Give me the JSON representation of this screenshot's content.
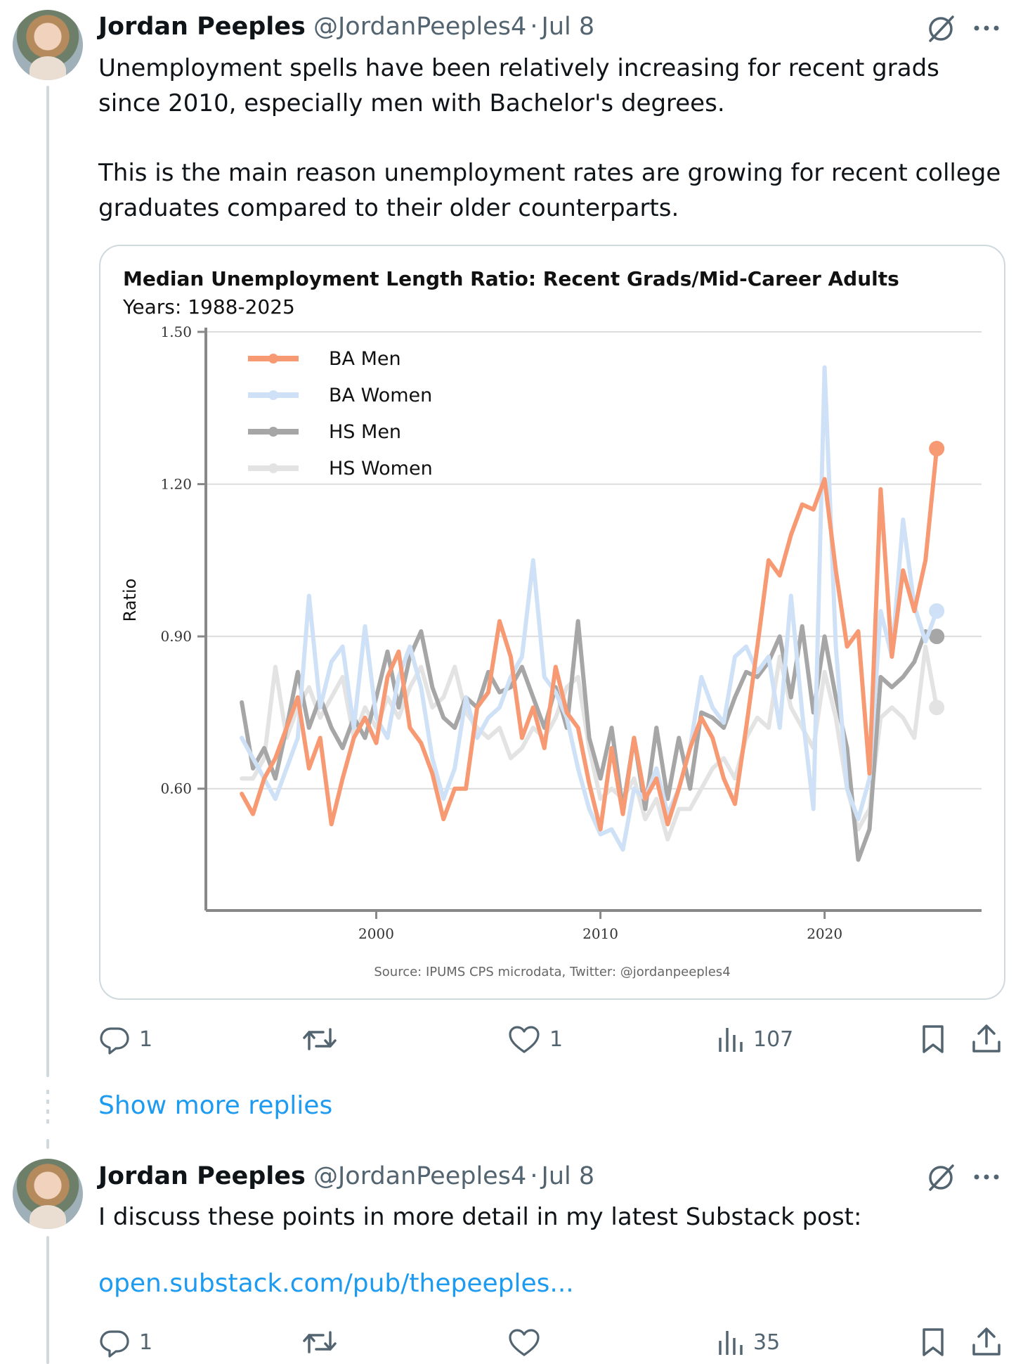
{
  "tweet1": {
    "name": "Jordan Peeples",
    "handle": "@JordanPeeples4",
    "dot": "·",
    "date": "Jul 8",
    "text_p1": "Unemployment spells have been relatively increasing for recent grads since 2010, especially men with Bachelor's degrees.",
    "text_p2": "This is the main reason unemployment rates are growing for recent college graduates compared to their older counterparts.",
    "actions": {
      "replies": "1",
      "reposts": "",
      "likes": "1",
      "views": "107"
    }
  },
  "show_more": "Show more replies",
  "tweet2": {
    "name": "Jordan Peeples",
    "handle": "@JordanPeeples4",
    "dot": "·",
    "date": "Jul 8",
    "text": "I discuss these points in more detail in my latest Substack post:",
    "link": "open.substack.com/pub/thepeeples...",
    "actions": {
      "replies": "1",
      "reposts": "",
      "likes": "",
      "views": "35"
    }
  },
  "icons": [
    "grok-slash-icon",
    "more-icon",
    "reply-icon",
    "repost-icon",
    "like-icon",
    "views-icon",
    "bookmark-icon",
    "share-icon"
  ],
  "colors": {
    "link": "#1d9bf0",
    "muted": "#536471",
    "thread_line": "#cfd9de"
  },
  "chart_data": {
    "type": "line",
    "title": "Median Unemployment Length Ratio: Recent Grads/Mid-Career Adults",
    "subtitle": "Years: 1988-2025",
    "ylabel": "Ratio",
    "xlabel": "",
    "ylim": [
      0.36,
      1.5
    ],
    "xlim": [
      1992.4,
      2027
    ],
    "yticks": [
      "0.60",
      "0.90",
      "1.20",
      "1.50"
    ],
    "yticks_values": [
      0.6,
      0.9,
      1.2,
      1.5
    ],
    "xticks": [
      "2000",
      "2010",
      "2020"
    ],
    "xticks_values": [
      2000,
      2010,
      2020
    ],
    "grid": true,
    "legend_position": "top-left",
    "source": "Source: IPUMS CPS microdata, Twitter: @jordanpeeples4",
    "series": [
      {
        "name": "BA Men",
        "color": "#f79a73",
        "x": [
          1994.0,
          1994.5,
          1995.0,
          1995.5,
          1996.0,
          1996.5,
          1997.0,
          1997.5,
          1998.0,
          1998.5,
          1999.0,
          1999.5,
          2000.0,
          2000.5,
          2001.0,
          2001.5,
          2002.0,
          2002.5,
          2003.0,
          2003.5,
          2004.0,
          2004.5,
          2005.0,
          2005.5,
          2006.0,
          2006.5,
          2007.0,
          2007.5,
          2008.0,
          2008.5,
          2009.0,
          2009.5,
          2010.0,
          2010.5,
          2011.0,
          2011.5,
          2012.0,
          2012.5,
          2013.0,
          2013.5,
          2014.0,
          2014.5,
          2015.0,
          2015.5,
          2016.0,
          2016.5,
          2017.0,
          2017.5,
          2018.0,
          2018.5,
          2019.0,
          2019.5,
          2020.0,
          2020.5,
          2021.0,
          2021.5,
          2022.0,
          2022.5,
          2023.0,
          2023.5,
          2024.0,
          2024.5,
          2025.0
        ],
        "values": [
          0.59,
          0.55,
          0.62,
          0.66,
          0.72,
          0.78,
          0.64,
          0.7,
          0.53,
          0.62,
          0.7,
          0.74,
          0.69,
          0.82,
          0.87,
          0.72,
          0.69,
          0.63,
          0.54,
          0.6,
          0.6,
          0.76,
          0.79,
          0.93,
          0.86,
          0.7,
          0.76,
          0.68,
          0.84,
          0.75,
          0.72,
          0.61,
          0.52,
          0.68,
          0.55,
          0.7,
          0.58,
          0.62,
          0.53,
          0.6,
          0.68,
          0.74,
          0.7,
          0.62,
          0.57,
          0.72,
          0.88,
          1.05,
          1.02,
          1.1,
          1.16,
          1.15,
          1.21,
          1.03,
          0.88,
          0.91,
          0.63,
          1.19,
          0.86,
          1.03,
          0.95,
          1.05,
          1.27
        ]
      },
      {
        "name": "BA Women",
        "color": "#cfe1f7",
        "x": [
          1994.0,
          1994.5,
          1995.0,
          1995.5,
          1996.0,
          1996.5,
          1997.0,
          1997.5,
          1998.0,
          1998.5,
          1999.0,
          1999.5,
          2000.0,
          2000.5,
          2001.0,
          2001.5,
          2002.0,
          2002.5,
          2003.0,
          2003.5,
          2004.0,
          2004.5,
          2005.0,
          2005.5,
          2006.0,
          2006.5,
          2007.0,
          2007.5,
          2008.0,
          2008.5,
          2009.0,
          2009.5,
          2010.0,
          2010.5,
          2011.0,
          2011.5,
          2012.0,
          2012.5,
          2013.0,
          2013.5,
          2014.0,
          2014.5,
          2015.0,
          2015.5,
          2016.0,
          2016.5,
          2017.0,
          2017.5,
          2018.0,
          2018.5,
          2019.0,
          2019.5,
          2020.0,
          2020.5,
          2021.0,
          2021.5,
          2022.0,
          2022.5,
          2023.0,
          2023.5,
          2024.0,
          2024.5,
          2025.0
        ],
        "values": [
          0.7,
          0.66,
          0.62,
          0.58,
          0.64,
          0.7,
          0.98,
          0.76,
          0.85,
          0.88,
          0.72,
          0.92,
          0.74,
          0.7,
          0.82,
          0.88,
          0.8,
          0.66,
          0.58,
          0.64,
          0.78,
          0.7,
          0.74,
          0.76,
          0.82,
          0.86,
          1.05,
          0.82,
          0.79,
          0.74,
          0.64,
          0.56,
          0.51,
          0.52,
          0.48,
          0.6,
          0.58,
          0.64,
          0.55,
          0.6,
          0.68,
          0.82,
          0.76,
          0.73,
          0.86,
          0.88,
          0.83,
          0.86,
          0.72,
          0.98,
          0.75,
          0.56,
          1.43,
          0.88,
          0.6,
          0.54,
          0.62,
          0.95,
          0.86,
          1.13,
          0.96,
          0.89,
          0.95
        ]
      },
      {
        "name": "HS Men",
        "color": "#a6a6a6",
        "x": [
          1994.0,
          1994.5,
          1995.0,
          1995.5,
          1996.0,
          1996.5,
          1997.0,
          1997.5,
          1998.0,
          1998.5,
          1999.0,
          1999.5,
          2000.0,
          2000.5,
          2001.0,
          2001.5,
          2002.0,
          2002.5,
          2003.0,
          2003.5,
          2004.0,
          2004.5,
          2005.0,
          2005.5,
          2006.0,
          2006.5,
          2007.0,
          2007.5,
          2008.0,
          2008.5,
          2009.0,
          2009.5,
          2010.0,
          2010.5,
          2011.0,
          2011.5,
          2012.0,
          2012.5,
          2013.0,
          2013.5,
          2014.0,
          2014.5,
          2015.0,
          2015.5,
          2016.0,
          2016.5,
          2017.0,
          2017.5,
          2018.0,
          2018.5,
          2019.0,
          2019.5,
          2020.0,
          2020.5,
          2021.0,
          2021.5,
          2022.0,
          2022.5,
          2023.0,
          2023.5,
          2024.0,
          2024.5,
          2025.0
        ],
        "values": [
          0.77,
          0.64,
          0.68,
          0.62,
          0.72,
          0.83,
          0.72,
          0.78,
          0.72,
          0.68,
          0.74,
          0.7,
          0.78,
          0.87,
          0.76,
          0.86,
          0.91,
          0.8,
          0.74,
          0.72,
          0.78,
          0.76,
          0.83,
          0.79,
          0.8,
          0.84,
          0.78,
          0.72,
          0.8,
          0.72,
          0.93,
          0.7,
          0.62,
          0.72,
          0.56,
          0.7,
          0.56,
          0.72,
          0.58,
          0.7,
          0.6,
          0.75,
          0.74,
          0.72,
          0.78,
          0.83,
          0.82,
          0.85,
          0.9,
          0.78,
          0.92,
          0.75,
          0.9,
          0.78,
          0.68,
          0.46,
          0.52,
          0.82,
          0.8,
          0.82,
          0.85,
          0.91,
          0.9
        ]
      },
      {
        "name": "HS Women",
        "color": "#e3e3e3",
        "x": [
          1994.0,
          1994.5,
          1995.0,
          1995.5,
          1996.0,
          1996.5,
          1997.0,
          1997.5,
          1998.0,
          1998.5,
          1999.0,
          1999.5,
          2000.0,
          2000.5,
          2001.0,
          2001.5,
          2002.0,
          2002.5,
          2003.0,
          2003.5,
          2004.0,
          2004.5,
          2005.0,
          2005.5,
          2006.0,
          2006.5,
          2007.0,
          2007.5,
          2008.0,
          2008.5,
          2009.0,
          2009.5,
          2010.0,
          2010.5,
          2011.0,
          2011.5,
          2012.0,
          2012.5,
          2013.0,
          2013.5,
          2014.0,
          2014.5,
          2015.0,
          2015.5,
          2016.0,
          2016.5,
          2017.0,
          2017.5,
          2018.0,
          2018.5,
          2019.0,
          2019.5,
          2020.0,
          2020.5,
          2021.0,
          2021.5,
          2022.0,
          2022.5,
          2023.0,
          2023.5,
          2024.0,
          2024.5,
          2025.0
        ],
        "values": [
          0.62,
          0.62,
          0.66,
          0.84,
          0.7,
          0.76,
          0.8,
          0.74,
          0.78,
          0.82,
          0.7,
          0.76,
          0.72,
          0.78,
          0.74,
          0.8,
          0.84,
          0.76,
          0.78,
          0.84,
          0.75,
          0.72,
          0.7,
          0.72,
          0.66,
          0.68,
          0.72,
          0.7,
          0.74,
          0.8,
          0.82,
          0.68,
          0.58,
          0.6,
          0.58,
          0.62,
          0.54,
          0.58,
          0.5,
          0.56,
          0.56,
          0.6,
          0.64,
          0.66,
          0.62,
          0.7,
          0.74,
          0.72,
          0.86,
          0.76,
          0.72,
          0.68,
          0.83,
          0.74,
          0.6,
          0.52,
          0.56,
          0.74,
          0.76,
          0.74,
          0.7,
          0.88,
          0.76
        ]
      }
    ]
  }
}
